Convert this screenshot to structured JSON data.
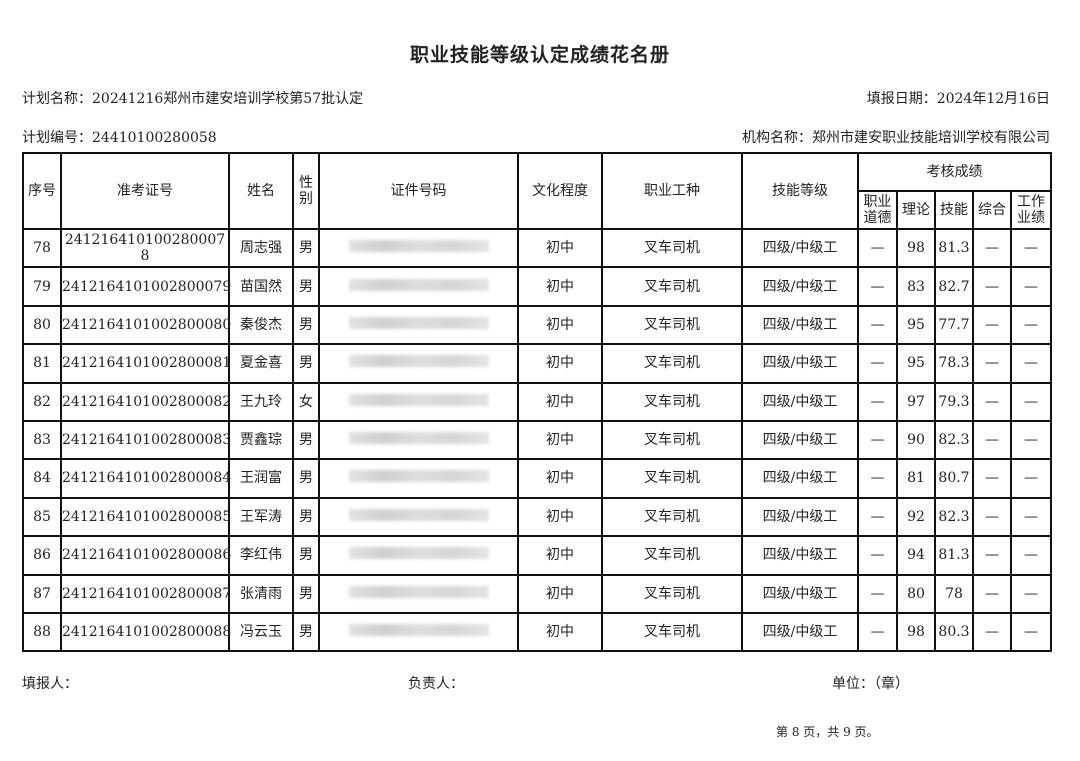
{
  "title": "职业技能等级认定成绩花名册",
  "plan_name": "计划名称：20241216郑州市建安培训学校第57批认定",
  "fill_date": "填报日期：2024年12月16日",
  "plan_number": "计划编号：24410100280058",
  "org_name": "机构名称：郑州市建安职业技能培训学校有限公司",
  "headers": {
    "seq": "序号",
    "exam_no": "准考证号",
    "name": "姓名",
    "gender": "性别",
    "id_no": "证件号码",
    "education": "文化程度",
    "occupation": "职业工种",
    "level": "技能等级",
    "scores": "考核成绩",
    "ethics": "职业道德",
    "theory": "理论",
    "skill": "技能",
    "overall": "综合",
    "work": "工作业绩"
  },
  "rows": [
    {
      "seq": "78",
      "exam_no": "241216410100280007 8",
      "name": "周志强",
      "gender": "男",
      "education": "初中",
      "occupation": "叉车司机",
      "level": "四级/中级工",
      "ethics": "—",
      "theory": "98",
      "skill": "81.3",
      "overall": "—",
      "work": "—"
    },
    {
      "seq": "79",
      "exam_no": "2412164101002800079",
      "name": "苗国然",
      "gender": "男",
      "education": "初中",
      "occupation": "叉车司机",
      "level": "四级/中级工",
      "ethics": "—",
      "theory": "83",
      "skill": "82.7",
      "overall": "—",
      "work": "—"
    },
    {
      "seq": "80",
      "exam_no": "2412164101002800080",
      "name": "秦俊杰",
      "gender": "男",
      "education": "初中",
      "occupation": "叉车司机",
      "level": "四级/中级工",
      "ethics": "—",
      "theory": "95",
      "skill": "77.7",
      "overall": "—",
      "work": "—"
    },
    {
      "seq": "81",
      "exam_no": "2412164101002800081",
      "name": "夏金喜",
      "gender": "男",
      "education": "初中",
      "occupation": "叉车司机",
      "level": "四级/中级工",
      "ethics": "—",
      "theory": "95",
      "skill": "78.3",
      "overall": "—",
      "work": "—"
    },
    {
      "seq": "82",
      "exam_no": "2412164101002800082",
      "name": "王九玲",
      "gender": "女",
      "education": "初中",
      "occupation": "叉车司机",
      "level": "四级/中级工",
      "ethics": "—",
      "theory": "97",
      "skill": "79.3",
      "overall": "—",
      "work": "—"
    },
    {
      "seq": "83",
      "exam_no": "2412164101002800083",
      "name": "贾鑫琮",
      "gender": "男",
      "education": "初中",
      "occupation": "叉车司机",
      "level": "四级/中级工",
      "ethics": "—",
      "theory": "90",
      "skill": "82.3",
      "overall": "—",
      "work": "—"
    },
    {
      "seq": "84",
      "exam_no": "2412164101002800084",
      "name": "王润富",
      "gender": "男",
      "education": "初中",
      "occupation": "叉车司机",
      "level": "四级/中级工",
      "ethics": "—",
      "theory": "81",
      "skill": "80.7",
      "overall": "—",
      "work": "—"
    },
    {
      "seq": "85",
      "exam_no": "2412164101002800085",
      "name": "王军涛",
      "gender": "男",
      "education": "初中",
      "occupation": "叉车司机",
      "level": "四级/中级工",
      "ethics": "—",
      "theory": "92",
      "skill": "82.3",
      "overall": "—",
      "work": "—"
    },
    {
      "seq": "86",
      "exam_no": "2412164101002800086",
      "name": "李红伟",
      "gender": "男",
      "education": "初中",
      "occupation": "叉车司机",
      "level": "四级/中级工",
      "ethics": "—",
      "theory": "94",
      "skill": "81.3",
      "overall": "—",
      "work": "—"
    },
    {
      "seq": "87",
      "exam_no": "2412164101002800087",
      "name": "张清雨",
      "gender": "男",
      "education": "初中",
      "occupation": "叉车司机",
      "level": "四级/中级工",
      "ethics": "—",
      "theory": "80",
      "skill": "78",
      "overall": "—",
      "work": "—"
    },
    {
      "seq": "88",
      "exam_no": "2412164101002800088",
      "name": "冯云玉",
      "gender": "男",
      "education": "初中",
      "occupation": "叉车司机",
      "level": "四级/中级工",
      "ethics": "—",
      "theory": "98",
      "skill": "80.3",
      "overall": "—",
      "work": "—"
    }
  ],
  "footer": {
    "filler": "填报人：",
    "responsible": "负责人：",
    "unit": "单位：（章）",
    "page": "第 8 页，共 9 页。"
  }
}
